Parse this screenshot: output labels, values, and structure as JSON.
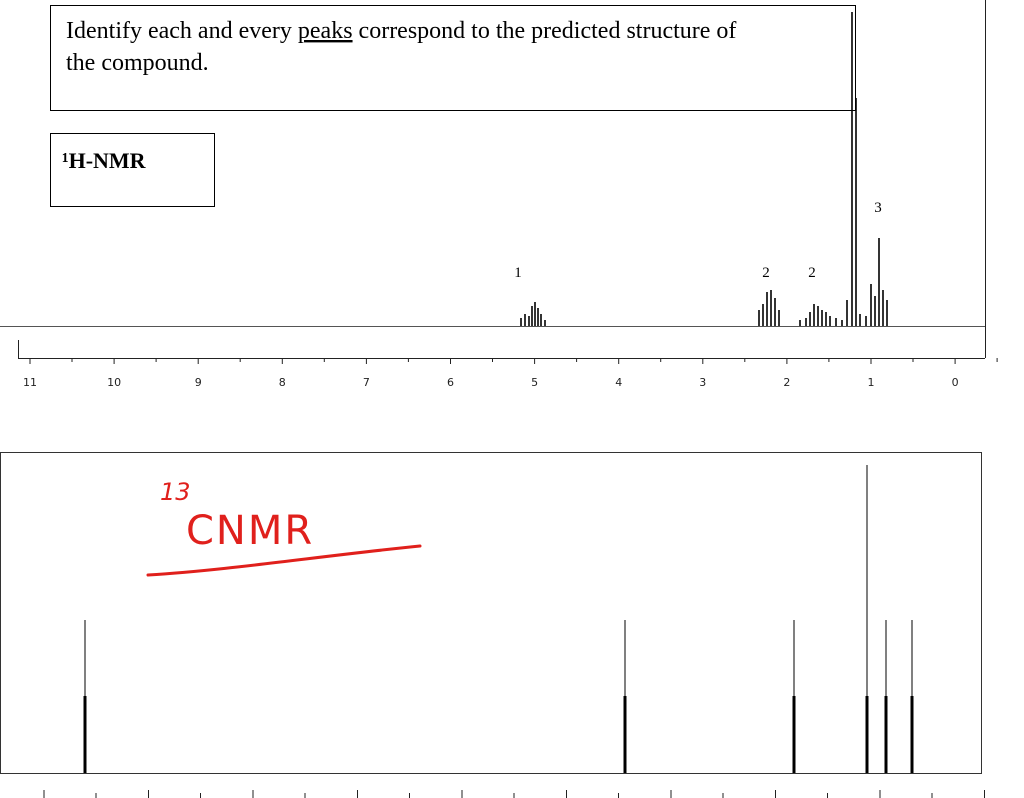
{
  "question": {
    "text": "Identify each and every peaks correspond to the predicted structure of the compound.",
    "underlined_word": "peaks"
  },
  "h_nmr": {
    "label": "¹H-NMR",
    "peak_labels": [
      "1",
      "2",
      "2",
      "3"
    ],
    "axis_labels": [
      "11",
      "10",
      "9",
      "8",
      "7",
      "6",
      "5",
      "4",
      "3",
      "2",
      "1",
      "0"
    ]
  },
  "c_nmr": {
    "annotation_superscript": "13",
    "annotation_text": "CNMR"
  }
}
